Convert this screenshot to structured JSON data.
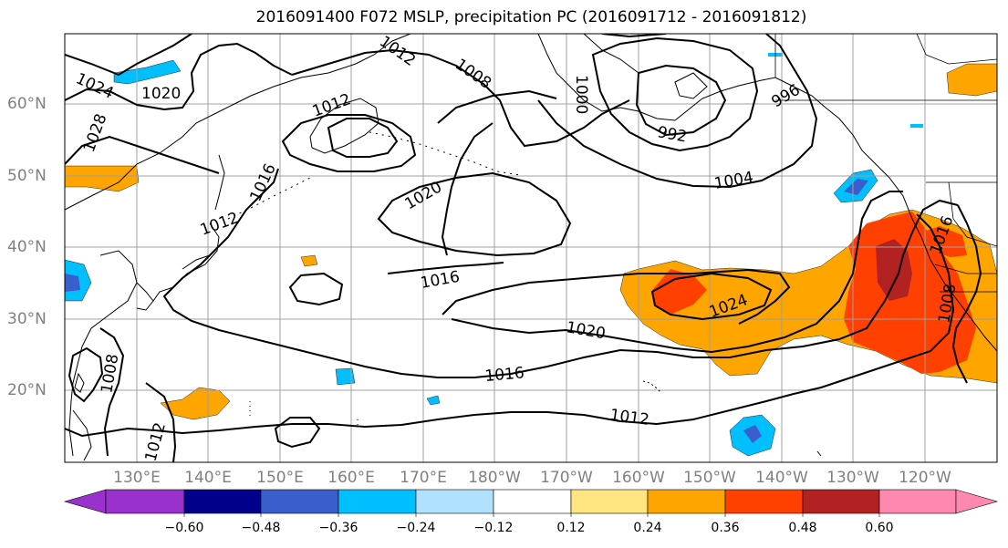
{
  "title": "2016091400 F072 MSLP, precipitation PC (2016091712 - 2016091812)",
  "lat_labels": [
    "60°N",
    "50°N",
    "40°N",
    "30°N",
    "20°N"
  ],
  "lon_labels": [
    "130°E",
    "140°E",
    "150°E",
    "160°E",
    "170°E",
    "180°W",
    "170°W",
    "160°W",
    "150°W",
    "140°W",
    "130°W",
    "120°W"
  ],
  "contour_labels": [
    "1024",
    "1020",
    "1028",
    "1012",
    "1008",
    "1012",
    "1016",
    "1012",
    "1020",
    "1016",
    "1008",
    "1012",
    "1000",
    "992",
    "996",
    "1004",
    "1024",
    "1020",
    "1016",
    "1012",
    "1008",
    "1016"
  ],
  "colorbar": {
    "ticks": [
      "−0.60",
      "−0.48",
      "−0.36",
      "−0.24",
      "−0.12",
      "0.12",
      "0.24",
      "0.36",
      "0.48",
      "0.60"
    ],
    "colors": [
      "#9932cc",
      "#00008b",
      "#3a5fcd",
      "#00bfff",
      "#b0e2ff",
      "#ffffff",
      "#ffe680",
      "#ffa500",
      "#ff4000",
      "#b22222",
      "#ff88b0"
    ]
  },
  "colors": {
    "orange": "#ffa500",
    "red_orange": "#ff4000",
    "dark_red": "#b22222",
    "light_blue": "#00bfff",
    "blue": "#3a5fcd"
  }
}
